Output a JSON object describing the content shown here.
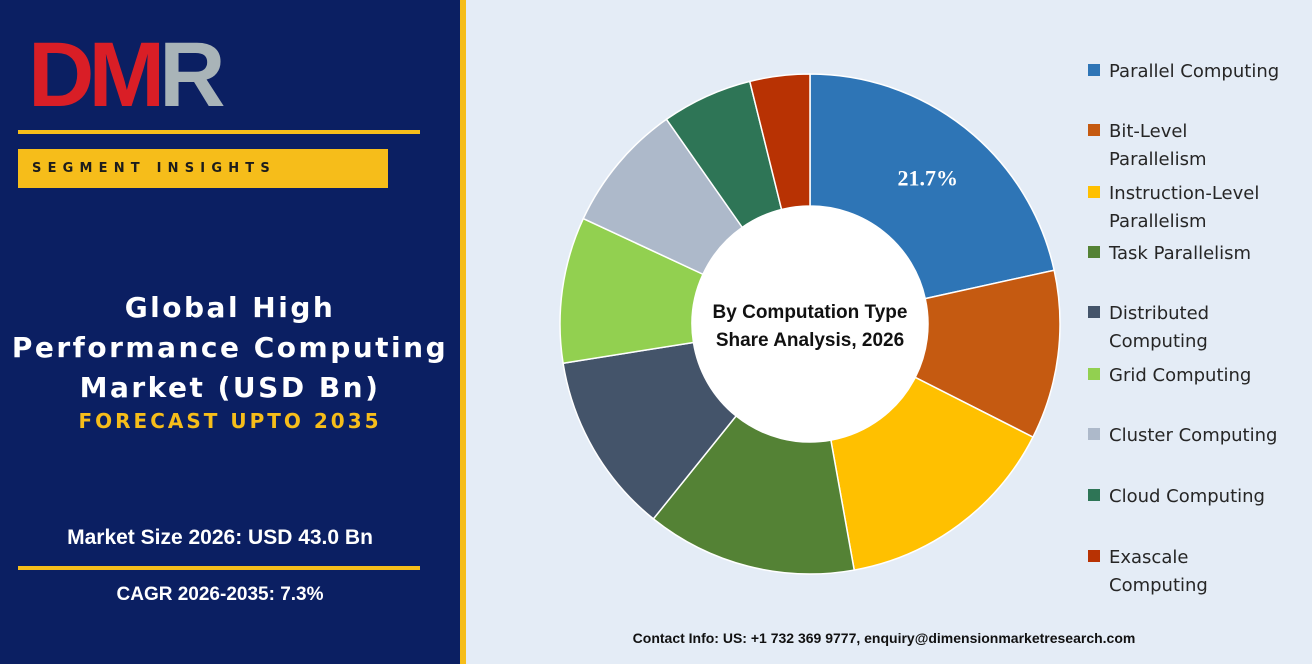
{
  "brand": {
    "logo_text": "DMR",
    "segment_label": "SEGMENT INSIGHTS"
  },
  "title": {
    "lines": [
      "Global High",
      "Performance Computing",
      "Market (USD Bn)"
    ],
    "forecast": "FORECAST UPTO 2035"
  },
  "stats": {
    "market_size": "Market Size 2026: USD 43.0 Bn",
    "cagr": "CAGR 2026-2035: 7.3%"
  },
  "contact": "Contact Info: US: +1 732 369 9777, enquiry@dimensionmarketresearch.com",
  "colors": {
    "navy": "#0b1f62",
    "gold": "#f6bd1a",
    "background": "#e4ecf6"
  },
  "chart_data": {
    "type": "pie",
    "style": "donut",
    "center_label": [
      "By Computation Type",
      "Share Analysis, 2026"
    ],
    "legend_position": "right",
    "data_labels": [
      "21.7%",
      "",
      "",
      "",
      "",
      "",
      "",
      "",
      ""
    ],
    "categories": [
      "Parallel Computing",
      "Bit-Level Parallelism",
      "Instruction-Level Parallelism",
      "Task Parallelism",
      "Distributed Computing",
      "Grid Computing",
      "Cluster Computing",
      "Cloud Computing",
      "Exascale Computing"
    ],
    "values": [
      21.7,
      11.0,
      14.8,
      13.7,
      11.8,
      9.5,
      8.4,
      5.9,
      3.9
    ],
    "colors": [
      "#2e75b6",
      "#c55a11",
      "#ffc000",
      "#548235",
      "#44546a",
      "#92d050",
      "#adb9ca",
      "#2e7556",
      "#b83203"
    ]
  }
}
